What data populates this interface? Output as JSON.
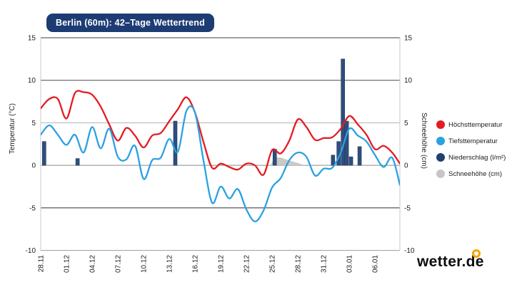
{
  "title": "Berlin (60m): 42–Tage Wettertrend",
  "logo": {
    "text": "wetter.de"
  },
  "colors": {
    "title_bg": "#1d3c73",
    "max_temp": "#e41b22",
    "min_temp": "#2ba1e2",
    "precip": "#2e4e7e",
    "snow": "#c9c9c9",
    "logo_ring": "#f6a500",
    "axis_line": "#c9c9c9"
  },
  "axes": {
    "left_label": "Temperatur (°C)",
    "right_label": "Schneehöhe (cm)"
  },
  "legend": {
    "position": "right",
    "items": [
      {
        "label": "Höchsttemperatur",
        "color": "#e41b22"
      },
      {
        "label": "Tiefsttemperatur",
        "color": "#2ba1e2"
      },
      {
        "label": "Niederschlag (l/m²)",
        "color": "#24406e"
      },
      {
        "label": "Schneehöhe (cm)",
        "color": "#c6c6c6"
      }
    ]
  },
  "chart_data": {
    "type": "line+bar+area",
    "title": "Berlin (60m): 42–Tage Wettertrend",
    "ylabel_left": "Temperatur (°C)",
    "ylabel_right": "Schneehöhe (cm)",
    "ylim": [
      -10,
      15
    ],
    "yticks": [
      15,
      10,
      5,
      0,
      -5,
      -10
    ],
    "ytick_line_colors": [
      "#3c3c3c",
      "#4a4a4a",
      "#b5b5b5",
      "#8a8a8a",
      "#2e2e2e",
      "#9b9b9b"
    ],
    "grid": true,
    "legend_position": "right",
    "x_days_total": 41.9,
    "x_tick_days": [
      0,
      3,
      6,
      9,
      12,
      15,
      18,
      21,
      24,
      27,
      30,
      33,
      36,
      39
    ],
    "x_tick_labels": [
      "28.11",
      "01.12",
      "04.12",
      "07.12",
      "10.12",
      "13.12",
      "16.12",
      "19.12",
      "22.12",
      "25.12",
      "28.12",
      "31.12",
      "03.01",
      "06.01"
    ],
    "series": [
      {
        "name": "Höchsttemperatur",
        "type": "line",
        "color": "#e41b22",
        "unit": "°C",
        "values": [
          6.7,
          7.8,
          7.8,
          5.5,
          8.5,
          8.6,
          8.3,
          6.9,
          4.8,
          2.9,
          4.4,
          3.5,
          2.1,
          3.5,
          3.8,
          5.2,
          6.6,
          8.0,
          6.2,
          2.7,
          -0.3,
          0.2,
          -0.2,
          -0.5,
          0.2,
          0.0,
          -1.1,
          1.8,
          1.4,
          2.9,
          5.4,
          4.5,
          3.0,
          3.2,
          3.3,
          4.3,
          5.8,
          4.8,
          3.6,
          1.9,
          2.3,
          1.5,
          0.2
        ]
      },
      {
        "name": "Tiefsttemperatur",
        "type": "line",
        "color": "#2ba1e2",
        "unit": "°C",
        "values": [
          3.6,
          4.7,
          3.6,
          2.4,
          3.6,
          1.5,
          4.5,
          2.0,
          4.3,
          1.0,
          0.7,
          2.3,
          -1.6,
          0.6,
          0.9,
          3.1,
          1.6,
          6.4,
          6.2,
          0.5,
          -4.4,
          -2.5,
          -3.9,
          -2.8,
          -5.2,
          -6.6,
          -5.3,
          -2.6,
          -1.5,
          0.6,
          1.5,
          1.0,
          -1.2,
          -0.4,
          -0.3,
          1.5,
          4.3,
          3.5,
          2.8,
          1.2,
          -0.2,
          0.9,
          -2.3
        ]
      },
      {
        "name": "Niederschlag (l/m²)",
        "type": "bar",
        "color": "#2e4e7e",
        "unit": "l/m²",
        "points": [
          [
            0.4,
            2.8
          ],
          [
            4.3,
            0.8
          ],
          [
            15.7,
            5.2
          ],
          [
            27.3,
            1.9
          ],
          [
            34.1,
            1.2
          ],
          [
            34.75,
            2.8
          ],
          [
            35.25,
            12.5
          ],
          [
            35.7,
            5.2
          ],
          [
            36.2,
            1.0
          ],
          [
            37.2,
            2.2
          ]
        ]
      },
      {
        "name": "Schneehöhe (cm)",
        "type": "area",
        "color": "#c9c9c9",
        "unit": "cm",
        "points": [
          [
            26.8,
            0
          ],
          [
            27.3,
            0.85
          ],
          [
            28.0,
            0.9
          ],
          [
            28.6,
            0.7
          ],
          [
            29.4,
            0.45
          ],
          [
            30.2,
            0.2
          ],
          [
            30.9,
            0
          ]
        ]
      }
    ]
  }
}
